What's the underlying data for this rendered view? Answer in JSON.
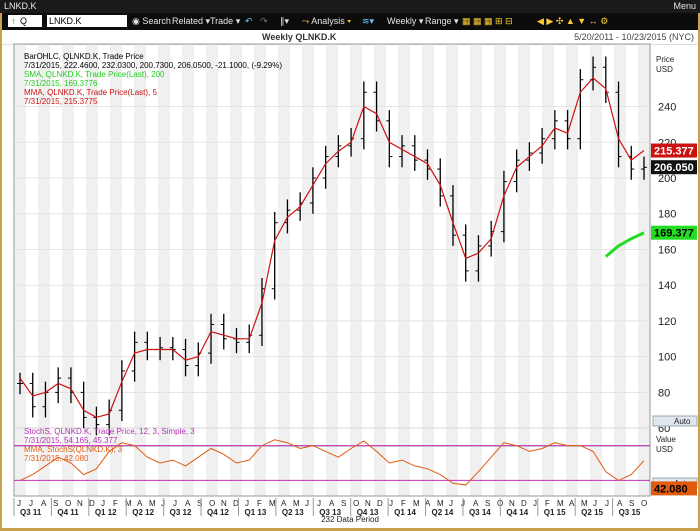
{
  "window": {
    "title": "LNKD.K",
    "menu": "Menu"
  },
  "toolbar": {
    "quote_label": "Q",
    "symbol": "LNKD.K",
    "search": "Search",
    "related": "Related",
    "trade": "Trade",
    "analysis": "Analysis",
    "weekly": "Weekly",
    "range": "Range"
  },
  "header": {
    "chart_title": "Weekly QLNKD.K",
    "date_range": "5/20/2011 - 10/23/2015 (NYC)"
  },
  "legend": {
    "bar_line1": "BarOHLC, QLNKD.K, Trade Price",
    "bar_line2": "7/31/2015, 222.4600, 232.0300, 200.7300, 206.0500, -21.1000, (-9.29%)",
    "sma_line1": "SMA, QLNKD.K, Trade Price(Last), 200",
    "sma_line2": "7/31/2015, 169.3776",
    "mma_line1": "MMA, QLNKD.K, Trade Price(Last), 5",
    "mma_line2": "7/31/2015, 215.3775",
    "stoch_line1": "StochS, QLNKD.K, Trade Price, 12, 3, Simple, 3",
    "stoch_line2": "7/31/2015, 54.165, 45.377",
    "mma2_line1": "MMA, StochS(QLNKD.K), 3",
    "mma2_line2": "7/31/2015, 42.080"
  },
  "colors": {
    "bars": "#000000",
    "sma": "#22dd22",
    "mma": "#cc1111",
    "stoch": "#c030c0",
    "stoch_mma": "#e05a10"
  },
  "axis": {
    "price_label": "Price",
    "price_unit": "USD",
    "value_label": "Value",
    "value_unit": "USD",
    "price_ticks": [
      "60",
      "80",
      "100",
      "120",
      "140",
      "160",
      "180",
      "200",
      "220",
      "240"
    ],
    "tag_mma": "215.377",
    "tag_last": "206.050",
    "tag_sma": "169.377",
    "tag_stoch": "42.080",
    "auto": "Auto",
    "months": [
      "J",
      "J",
      "A",
      "S",
      "O",
      "N",
      "D",
      "J",
      "F",
      "M",
      "A",
      "M",
      "J",
      "J",
      "A",
      "S",
      "O",
      "N",
      "D",
      "J",
      "F",
      "M",
      "A",
      "M",
      "J",
      "J",
      "A",
      "S",
      "O",
      "N",
      "D",
      "J",
      "F",
      "M",
      "A",
      "M",
      "J",
      "J",
      "A",
      "S",
      "O",
      "N",
      "D",
      "J",
      "F",
      "M",
      "A",
      "M",
      "J",
      "J",
      "A",
      "S",
      "O"
    ],
    "quarters": [
      "Q3 11",
      "Q4 11",
      "Q1 12",
      "Q2 12",
      "Q3 12",
      "Q4 12",
      "Q1 13",
      "Q2 13",
      "Q3 13",
      "Q4 13",
      "Q1 14",
      "Q2 14",
      "Q3 14",
      "Q4 14",
      "Q1 15",
      "Q2 15",
      "Q3 15"
    ],
    "footer": "232 Data Period"
  },
  "chart_data": {
    "type": "line",
    "title": "Weekly QLNKD.K",
    "x": [
      "2011-06",
      "2011-07",
      "2011-08",
      "2011-09",
      "2011-10",
      "2011-11",
      "2011-12",
      "2012-01",
      "2012-02",
      "2012-03",
      "2012-04",
      "2012-05",
      "2012-06",
      "2012-07",
      "2012-08",
      "2012-09",
      "2012-10",
      "2012-11",
      "2012-12",
      "2013-01",
      "2013-02",
      "2013-03",
      "2013-04",
      "2013-05",
      "2013-06",
      "2013-07",
      "2013-08",
      "2013-09",
      "2013-10",
      "2013-11",
      "2013-12",
      "2014-01",
      "2014-02",
      "2014-03",
      "2014-04",
      "2014-05",
      "2014-06",
      "2014-07",
      "2014-08",
      "2014-09",
      "2014-10",
      "2014-11",
      "2014-12",
      "2015-01",
      "2015-02",
      "2015-03",
      "2015-04",
      "2015-05",
      "2015-06",
      "2015-07"
    ],
    "series": [
      {
        "name": "BarOHLC close",
        "values": [
          85,
          72,
          80,
          88,
          80,
          66,
          62,
          70,
          92,
          108,
          104,
          105,
          104,
          95,
          102,
          118,
          110,
          108,
          112,
          138,
          175,
          182,
          186,
          200,
          212,
          218,
          222,
          248,
          232,
          212,
          218,
          210,
          205,
          190,
          168,
          148,
          162,
          170,
          198,
          210,
          214,
          222,
          232,
          222,
          255,
          262,
          248,
          212,
          205,
          206
        ]
      },
      {
        "name": "SMA 200",
        "values": [
          null,
          null,
          null,
          null,
          null,
          null,
          null,
          null,
          null,
          null,
          null,
          null,
          null,
          null,
          null,
          null,
          null,
          null,
          null,
          null,
          null,
          null,
          null,
          null,
          null,
          null,
          null,
          null,
          null,
          null,
          null,
          null,
          null,
          null,
          null,
          null,
          null,
          null,
          null,
          null,
          null,
          null,
          null,
          null,
          null,
          null,
          156,
          162,
          166,
          169.3776
        ]
      },
      {
        "name": "MMA 5",
        "values": [
          88,
          78,
          80,
          85,
          82,
          70,
          66,
          68,
          86,
          102,
          104,
          104,
          104,
          98,
          100,
          114,
          112,
          110,
          110,
          130,
          165,
          178,
          184,
          196,
          208,
          215,
          220,
          240,
          236,
          220,
          216,
          212,
          208,
          196,
          175,
          155,
          158,
          166,
          190,
          206,
          212,
          218,
          228,
          225,
          248,
          256,
          250,
          222,
          210,
          215.3775
        ]
      }
    ],
    "stoch_series": [
      {
        "name": "StochS %K",
        "values": [
          20,
          30,
          45,
          60,
          50,
          30,
          40,
          70,
          85,
          80,
          60,
          50,
          55,
          45,
          60,
          75,
          65,
          50,
          55,
          80,
          90,
          85,
          75,
          80,
          70,
          60,
          75,
          88,
          70,
          50,
          55,
          45,
          40,
          30,
          15,
          12,
          35,
          60,
          85,
          80,
          70,
          75,
          85,
          80,
          80,
          70,
          35,
          20,
          30,
          54.165
        ]
      },
      {
        "name": "StochS %D",
        "values": [
          22,
          28,
          40,
          55,
          52,
          35,
          38,
          65,
          82,
          82,
          62,
          52,
          55,
          47,
          58,
          72,
          66,
          52,
          55,
          77,
          88,
          86,
          77,
          79,
          71,
          62,
          73,
          85,
          72,
          52,
          54,
          46,
          41,
          31,
          17,
          14,
          32,
          57,
          82,
          81,
          71,
          74,
          83,
          81,
          79,
          71,
          38,
          22,
          28,
          45.377
        ]
      },
      {
        "name": "MMA StochS 3",
        "values": [
          null,
          null,
          null,
          null,
          null,
          null,
          null,
          null,
          null,
          null,
          null,
          null,
          null,
          null,
          null,
          null,
          null,
          null,
          null,
          null,
          null,
          null,
          null,
          null,
          null,
          null,
          null,
          null,
          null,
          null,
          null,
          null,
          null,
          null,
          null,
          null,
          null,
          null,
          null,
          null,
          null,
          null,
          null,
          null,
          null,
          null,
          null,
          null,
          null,
          42.08
        ]
      }
    ],
    "ylabel": "Price USD",
    "ylim": [
      50,
      275
    ],
    "grid": true,
    "legend_position": "top-left"
  }
}
